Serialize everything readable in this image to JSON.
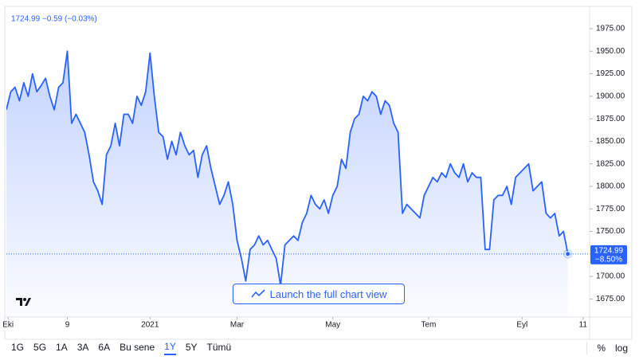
{
  "chart_data": {
    "type": "area",
    "header": "1724.99 −0.59 (−0.03%)",
    "launch_button": "Launch the full chart view",
    "color": "#2962ff",
    "x": [
      0,
      1,
      2,
      3,
      4,
      5,
      6,
      7,
      8,
      9,
      10,
      11,
      12,
      13,
      14,
      15,
      16,
      17,
      18,
      19,
      20,
      21,
      22,
      23,
      24,
      25,
      26,
      27,
      28,
      29,
      30,
      31,
      32,
      33,
      34,
      35,
      36,
      37,
      38,
      39,
      40,
      41,
      42,
      43,
      44,
      45,
      46,
      47,
      48,
      49,
      50,
      51,
      52,
      53,
      54,
      55,
      56,
      57,
      58,
      59,
      60,
      61,
      62,
      63,
      64,
      65,
      66,
      67,
      68,
      69,
      70,
      71,
      72,
      73,
      74,
      75,
      76,
      77,
      78,
      79,
      80,
      81,
      82,
      83,
      84,
      85,
      86,
      87,
      88,
      89,
      90,
      91,
      92,
      93,
      94,
      95,
      96,
      97,
      98,
      99,
      100,
      101,
      102,
      103,
      104,
      105,
      106,
      107,
      108,
      109,
      110,
      111,
      112,
      113,
      114,
      115,
      116,
      117,
      118,
      119,
      120,
      121,
      122,
      123,
      124,
      125,
      126,
      127,
      128,
      129
    ],
    "values": [
      1885,
      1905,
      1910,
      1895,
      1915,
      1900,
      1925,
      1905,
      1912,
      1920,
      1900,
      1885,
      1910,
      1915,
      1950,
      1870,
      1880,
      1870,
      1860,
      1835,
      1805,
      1795,
      1780,
      1835,
      1845,
      1870,
      1845,
      1880,
      1880,
      1870,
      1900,
      1890,
      1905,
      1948,
      1900,
      1860,
      1855,
      1830,
      1850,
      1835,
      1860,
      1845,
      1835,
      1840,
      1810,
      1835,
      1845,
      1820,
      1800,
      1780,
      1790,
      1805,
      1780,
      1740,
      1720,
      1695,
      1730,
      1735,
      1745,
      1735,
      1740,
      1730,
      1720,
      1690,
      1735,
      1740,
      1745,
      1740,
      1760,
      1770,
      1790,
      1780,
      1775,
      1785,
      1770,
      1790,
      1800,
      1830,
      1820,
      1860,
      1875,
      1880,
      1900,
      1895,
      1905,
      1900,
      1880,
      1895,
      1890,
      1870,
      1860,
      1770,
      1780,
      1775,
      1770,
      1765,
      1790,
      1800,
      1810,
      1805,
      1815,
      1810,
      1825,
      1815,
      1810,
      1825,
      1805,
      1815,
      1810,
      1810,
      1730,
      1730,
      1785,
      1790,
      1790,
      1800,
      1780,
      1810,
      1815,
      1820,
      1825,
      1795,
      1800,
      1805,
      1770,
      1765,
      1770,
      1745,
      1750,
      1724.99
    ],
    "last_label": "1724.99",
    "last_change": "−8.50%",
    "xlim": [
      0,
      134
    ],
    "xticks": [
      {
        "value": 0.4,
        "label": "Eki"
      },
      {
        "value": 14,
        "label": "9"
      },
      {
        "value": 33,
        "label": "2021"
      },
      {
        "value": 53,
        "label": "Mar"
      },
      {
        "value": 75,
        "label": "May"
      },
      {
        "value": 97,
        "label": "Tem"
      },
      {
        "value": 118.5,
        "label": "Eyl"
      },
      {
        "value": 132.5,
        "label": "11"
      }
    ],
    "ylim": [
      1655,
      1998
    ],
    "yticks": [
      {
        "value": 1675,
        "label": "1675.00"
      },
      {
        "value": 1700,
        "label": "1700.00"
      },
      {
        "value": 1725,
        "label": "1725.00"
      },
      {
        "value": 1750,
        "label": "1750.00"
      },
      {
        "value": 1775,
        "label": "1775.00"
      },
      {
        "value": 1800,
        "label": "1800.00"
      },
      {
        "value": 1825,
        "label": "1825.00"
      },
      {
        "value": 1850,
        "label": "1850.00"
      },
      {
        "value": 1875,
        "label": "1875.00"
      },
      {
        "value": 1900,
        "label": "1900.00"
      },
      {
        "value": 1925,
        "label": "1925.00"
      },
      {
        "value": 1950,
        "label": "1950.00"
      },
      {
        "value": 1975,
        "label": "1975.00"
      }
    ],
    "log_scale": false,
    "range_buttons": [
      "1G",
      "5G",
      "1A",
      "3A",
      "6A",
      "Bu sene",
      "1Y",
      "5Y",
      "Tümü"
    ],
    "active_range": "1Y",
    "scale_buttons": [
      "%",
      "log"
    ]
  }
}
